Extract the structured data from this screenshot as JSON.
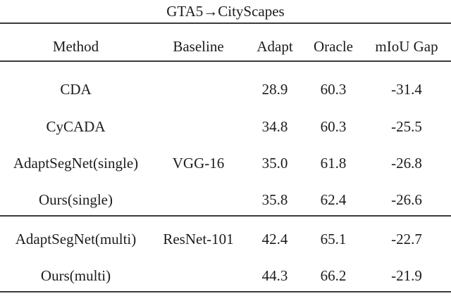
{
  "title": "GTA5→CityScapes",
  "table": {
    "columns": [
      "Method",
      "Baseline",
      "Adapt",
      "Oracle",
      "mIoU Gap"
    ],
    "groups": [
      {
        "rows": [
          {
            "method": "CDA",
            "baseline": "",
            "adapt": "28.9",
            "oracle": "60.3",
            "miou_gap": "-31.4"
          },
          {
            "method": "CyCADA",
            "baseline": "",
            "adapt": "34.8",
            "oracle": "60.3",
            "miou_gap": "-25.5"
          },
          {
            "method": "AdaptSegNet(single)",
            "baseline": "VGG-16",
            "adapt": "35.0",
            "oracle": "61.8",
            "miou_gap": "-26.8"
          },
          {
            "method": "Ours(single)",
            "baseline": "",
            "adapt": "35.8",
            "oracle": "62.4",
            "miou_gap": "-26.6"
          }
        ]
      },
      {
        "rows": [
          {
            "method": "AdaptSegNet(multi)",
            "baseline": "ResNet-101",
            "adapt": "42.4",
            "oracle": "65.1",
            "miou_gap": "-22.7"
          },
          {
            "method": "Ours(multi)",
            "baseline": "",
            "adapt": "44.3",
            "oracle": "66.2",
            "miou_gap": "-21.9"
          }
        ]
      }
    ]
  }
}
